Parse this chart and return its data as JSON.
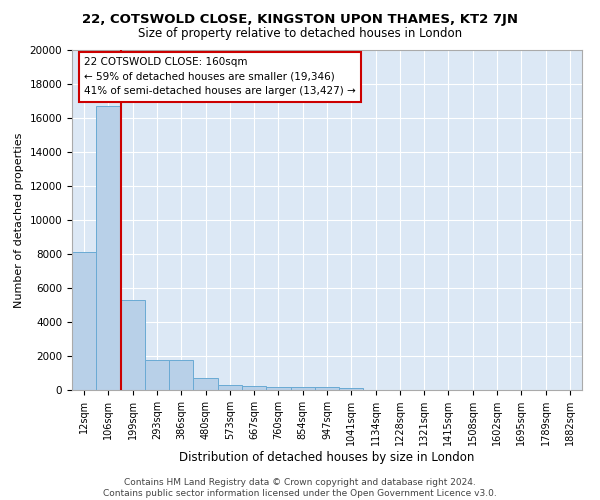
{
  "title": "22, COTSWOLD CLOSE, KINGSTON UPON THAMES, KT2 7JN",
  "subtitle": "Size of property relative to detached houses in London",
  "xlabel": "Distribution of detached houses by size in London",
  "ylabel": "Number of detached properties",
  "bin_labels": [
    "12sqm",
    "106sqm",
    "199sqm",
    "293sqm",
    "386sqm",
    "480sqm",
    "573sqm",
    "667sqm",
    "760sqm",
    "854sqm",
    "947sqm",
    "1041sqm",
    "1134sqm",
    "1228sqm",
    "1321sqm",
    "1415sqm",
    "1508sqm",
    "1602sqm",
    "1695sqm",
    "1789sqm",
    "1882sqm"
  ],
  "bar_heights": [
    8100,
    16700,
    5300,
    1750,
    1750,
    700,
    300,
    250,
    200,
    175,
    150,
    100,
    0,
    0,
    0,
    0,
    0,
    0,
    0,
    0,
    0
  ],
  "bar_color": "#b8d0e8",
  "bar_edge_color": "#6aaad4",
  "bg_color": "#dce8f5",
  "grid_color": "#ffffff",
  "property_line_color": "#cc0000",
  "annotation_text": "22 COTSWOLD CLOSE: 160sqm\n← 59% of detached houses are smaller (19,346)\n41% of semi-detached houses are larger (13,427) →",
  "annotation_box_color": "#ffffff",
  "annotation_box_edge": "#cc0000",
  "footer_text": "Contains HM Land Registry data © Crown copyright and database right 2024.\nContains public sector information licensed under the Open Government Licence v3.0.",
  "ylim": [
    0,
    20000
  ],
  "yticks": [
    0,
    2000,
    4000,
    6000,
    8000,
    10000,
    12000,
    14000,
    16000,
    18000,
    20000
  ],
  "fig_bg": "#ffffff"
}
